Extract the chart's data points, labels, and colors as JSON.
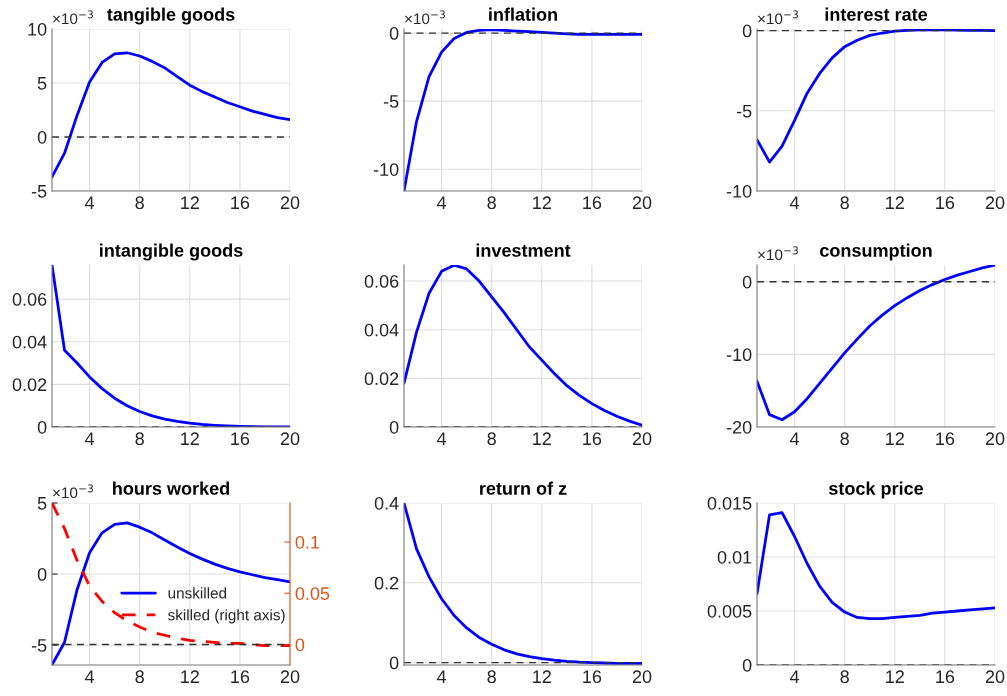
{
  "chart_data": [
    {
      "type": "line",
      "title": "tangible goods",
      "annotations": [
        "×10$^{−3}$"
      ],
      "x": [
        1,
        2,
        3,
        4,
        5,
        6,
        7,
        8,
        9,
        10,
        11,
        12,
        13,
        14,
        15,
        16,
        17,
        18,
        19,
        20
      ],
      "xlim": [
        1,
        20
      ],
      "xticks": [
        4,
        8,
        12,
        16,
        20
      ],
      "ylim": [
        -5,
        10
      ],
      "yticks": [
        -5,
        0,
        5,
        10
      ],
      "grid": true,
      "series": [
        {
          "color": "#0000ff",
          "values": [
            -3.7,
            -1.5,
            2.0,
            5.1,
            6.9,
            7.7,
            7.8,
            7.5,
            7.0,
            6.4,
            5.6,
            4.8,
            4.2,
            3.7,
            3.2,
            2.8,
            2.4,
            2.1,
            1.8,
            1.6
          ]
        }
      ],
      "ref_lines": [
        {
          "axis": "y",
          "value": 0,
          "color": "#333333",
          "line_style": "dashed"
        }
      ]
    },
    {
      "type": "line",
      "title": "inflation",
      "annotations": [
        "×10$^{−3}$"
      ],
      "x": [
        1,
        2,
        3,
        4,
        5,
        6,
        7,
        8,
        9,
        10,
        11,
        12,
        13,
        14,
        15,
        16,
        17,
        18,
        19,
        20
      ],
      "xlim": [
        1,
        20
      ],
      "xticks": [
        4,
        8,
        12,
        16,
        20
      ],
      "ylim": [
        -11.6,
        0.3
      ],
      "yticks": [
        -10,
        -5,
        0
      ],
      "grid": true,
      "series": [
        {
          "color": "#0000ff",
          "values": [
            -11.6,
            -6.5,
            -3.2,
            -1.4,
            -0.4,
            0.05,
            0.2,
            0.25,
            0.2,
            0.15,
            0.1,
            0.05,
            0,
            -0.05,
            -0.1,
            -0.1,
            -0.1,
            -0.1,
            -0.1,
            -0.1
          ]
        }
      ],
      "ref_lines": [
        {
          "axis": "y",
          "value": 0,
          "color": "#333333",
          "line_style": "dashed"
        }
      ]
    },
    {
      "type": "line",
      "title": "interest rate",
      "annotations": [
        "×10$^{−3}$"
      ],
      "x": [
        1,
        2,
        3,
        4,
        5,
        6,
        7,
        8,
        9,
        10,
        11,
        12,
        13,
        14,
        15,
        16,
        17,
        18,
        19,
        20
      ],
      "xlim": [
        1,
        20
      ],
      "xticks": [
        4,
        8,
        12,
        16,
        20
      ],
      "ylim": [
        -10,
        0.1
      ],
      "yticks": [
        -10,
        -5,
        0
      ],
      "grid": true,
      "series": [
        {
          "color": "#0000ff",
          "values": [
            -6.8,
            -8.2,
            -7.2,
            -5.6,
            -3.9,
            -2.67,
            -1.7,
            -1.0,
            -0.6,
            -0.3,
            -0.15,
            -0.03,
            0.02,
            0.05,
            0.05,
            0.04,
            0.03,
            0.02,
            0.01,
            0
          ]
        }
      ],
      "ref_lines": [
        {
          "axis": "y",
          "value": 0,
          "color": "#333333",
          "line_style": "dashed"
        }
      ]
    },
    {
      "type": "line",
      "title": "intangible goods",
      "x": [
        1,
        2,
        3,
        4,
        5,
        6,
        7,
        8,
        9,
        10,
        11,
        12,
        13,
        14,
        15,
        16,
        17,
        18,
        19,
        20
      ],
      "xlim": [
        1,
        20
      ],
      "xticks": [
        4,
        8,
        12,
        16,
        20
      ],
      "ylim": [
        0,
        0.076
      ],
      "yticks": [
        0,
        0.02,
        0.04,
        0.06
      ],
      "grid": true,
      "series": [
        {
          "color": "#0000ff",
          "values": [
            0.076,
            0.036,
            0.03,
            0.0235,
            0.018,
            0.0135,
            0.01,
            0.0073,
            0.0052,
            0.0037,
            0.0026,
            0.0018,
            0.0012,
            0.0008,
            0.0005,
            0.0003,
            0.0002,
            0.0001,
            0.0001,
            0
          ]
        }
      ],
      "ref_lines": [
        {
          "axis": "y",
          "value": 0,
          "color": "#333333",
          "line_style": "dashed"
        }
      ]
    },
    {
      "type": "line",
      "title": "investment",
      "x": [
        1,
        2,
        3,
        4,
        5,
        6,
        7,
        8,
        9,
        10,
        11,
        12,
        13,
        14,
        15,
        16,
        17,
        18,
        19,
        20
      ],
      "xlim": [
        1,
        20
      ],
      "xticks": [
        4,
        8,
        12,
        16,
        20
      ],
      "ylim": [
        0,
        0.0666
      ],
      "yticks": [
        0,
        0.02,
        0.04,
        0.06
      ],
      "grid": true,
      "series": [
        {
          "color": "#0000ff",
          "values": [
            0.018,
            0.039,
            0.055,
            0.064,
            0.0665,
            0.065,
            0.06,
            0.0535,
            0.047,
            0.04,
            0.033,
            0.0275,
            0.022,
            0.017,
            0.013,
            0.0096,
            0.0068,
            0.0044,
            0.0024,
            0.0007
          ]
        }
      ],
      "ref_lines": [
        {
          "axis": "y",
          "value": 0,
          "color": "#333333",
          "line_style": "dashed"
        }
      ]
    },
    {
      "type": "line",
      "title": "consumption",
      "annotations": [
        "×10$^{−3}$"
      ],
      "x": [
        1,
        2,
        3,
        4,
        5,
        6,
        7,
        8,
        9,
        10,
        11,
        12,
        13,
        14,
        15,
        16,
        17,
        18,
        19,
        20
      ],
      "xlim": [
        1,
        20
      ],
      "xticks": [
        4,
        8,
        12,
        16,
        20
      ],
      "ylim": [
        -20,
        2.3
      ],
      "yticks": [
        -20,
        -10,
        0
      ],
      "grid": true,
      "series": [
        {
          "color": "#0000ff",
          "values": [
            -13.7,
            -18.3,
            -19.0,
            -17.9,
            -16.1,
            -14.0,
            -11.9,
            -9.8,
            -7.9,
            -6.1,
            -4.6,
            -3.3,
            -2.2,
            -1.2,
            -0.4,
            0.3,
            0.9,
            1.4,
            1.9,
            2.3
          ]
        }
      ],
      "ref_lines": [
        {
          "axis": "y",
          "value": 0,
          "color": "#333333",
          "line_style": "dashed"
        }
      ]
    },
    {
      "type": "line",
      "title": "hours worked",
      "annotations": [
        "×10$^{−3}$"
      ],
      "x": [
        1,
        2,
        3,
        4,
        5,
        6,
        7,
        8,
        9,
        10,
        11,
        12,
        13,
        14,
        15,
        16,
        17,
        18,
        19,
        20
      ],
      "xlim": [
        1,
        20
      ],
      "xticks": [
        4,
        8,
        12,
        16,
        20
      ],
      "ylim": [
        -6.4,
        5
      ],
      "yticks": [
        -5,
        0,
        5
      ],
      "y2lim": [
        -0.02,
        0.138
      ],
      "y2ticks": [
        0,
        0.05,
        0.1
      ],
      "grid": true,
      "legend": "bottom right",
      "series": [
        {
          "name": "unskilled",
          "color": "#0000ff",
          "line_style": "solid",
          "values": [
            -6.4,
            -4.8,
            -1.1,
            1.5,
            2.9,
            3.5,
            3.6,
            3.3,
            2.9,
            2.4,
            1.9,
            1.45,
            1.05,
            0.7,
            0.4,
            0.15,
            -0.05,
            -0.25,
            -0.4,
            -0.55
          ]
        },
        {
          "name": "skilled (right axis)",
          "color": "#ff0000",
          "axis": "y2",
          "line_style": "dashed",
          "values": [
            0.138,
            0.113,
            0.082,
            0.057,
            0.042,
            0.031,
            0.023,
            0.017,
            0.012,
            0.009,
            0.006,
            0.004,
            0.003,
            0.002,
            0.001,
            0.001,
            0,
            -0.001,
            -0.001,
            -0.001
          ]
        }
      ],
      "ref_lines": [
        {
          "axis": "y2",
          "value": 0,
          "color": "#333333",
          "line_style": "dashed"
        }
      ]
    },
    {
      "type": "line",
      "title": "return of z",
      "x": [
        1,
        2,
        3,
        4,
        5,
        6,
        7,
        8,
        9,
        10,
        11,
        12,
        13,
        14,
        15,
        16,
        17,
        18,
        19,
        20
      ],
      "xlim": [
        1,
        20
      ],
      "xticks": [
        4,
        8,
        12,
        16,
        20
      ],
      "ylim": [
        -0.006,
        0.4
      ],
      "yticks": [
        0,
        0.2,
        0.4
      ],
      "grid": true,
      "series": [
        {
          "color": "#0000ff",
          "values": [
            0.4,
            0.285,
            0.215,
            0.16,
            0.118,
            0.087,
            0.063,
            0.046,
            0.032,
            0.022,
            0.015,
            0.01,
            0.006,
            0.003,
            0.001,
            0,
            -0.001,
            -0.002,
            -0.002,
            -0.002
          ]
        }
      ],
      "ref_lines": [
        {
          "axis": "y",
          "value": 0,
          "color": "#333333",
          "line_style": "dashed"
        }
      ]
    },
    {
      "type": "line",
      "title": "stock price",
      "x": [
        1,
        2,
        3,
        4,
        5,
        6,
        7,
        8,
        9,
        10,
        11,
        12,
        13,
        14,
        15,
        16,
        17,
        18,
        19,
        20
      ],
      "xlim": [
        1,
        20
      ],
      "xticks": [
        4,
        8,
        12,
        16,
        20
      ],
      "ylim": [
        0,
        0.015
      ],
      "yticks": [
        0,
        0.005,
        0.01,
        0.015
      ],
      "grid": true,
      "series": [
        {
          "color": "#0000ff",
          "values": [
            0.0066,
            0.0139,
            0.0141,
            0.0119,
            0.0094,
            0.0073,
            0.0058,
            0.0049,
            0.0044,
            0.0043,
            0.0043,
            0.0044,
            0.0045,
            0.0046,
            0.0048,
            0.0049,
            0.005,
            0.0051,
            0.0052,
            0.0053
          ]
        }
      ],
      "ref_lines": [
        {
          "axis": "y",
          "value": 0,
          "color": "#333333",
          "line_style": "dashed"
        }
      ]
    }
  ]
}
